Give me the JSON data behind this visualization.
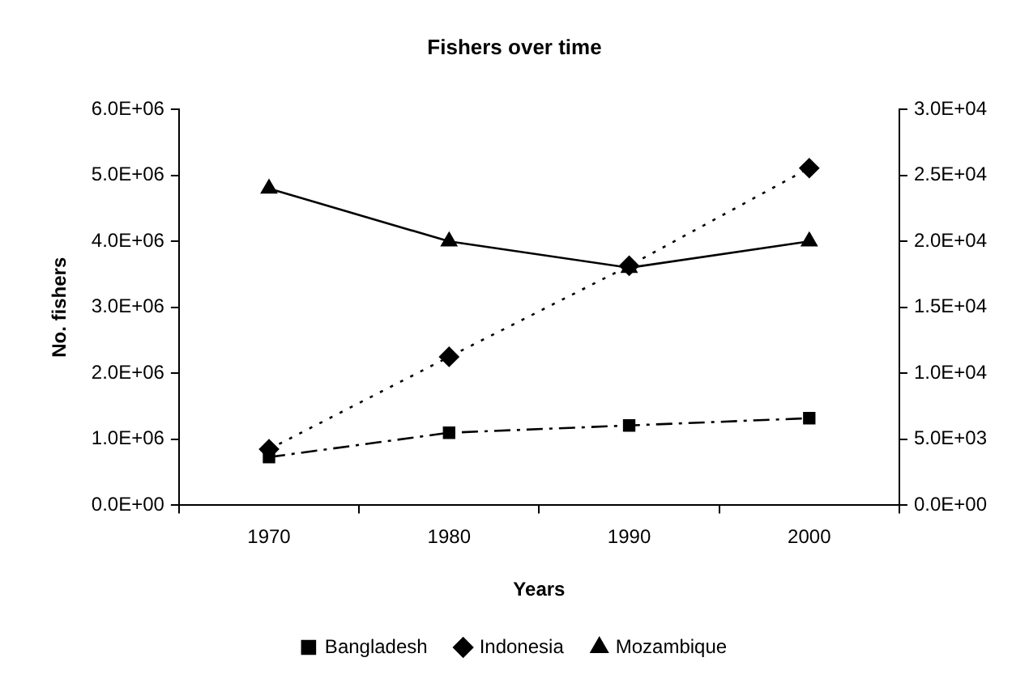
{
  "chart_data": {
    "type": "line",
    "title": "Fishers over time",
    "xlabel": "Years",
    "ylabel": "No. fishers",
    "categories": [
      "1970",
      "1980",
      "1990",
      "2000"
    ],
    "series": [
      {
        "name": "Bangladesh",
        "color": "#000000",
        "marker": "square",
        "line_style": "dashed",
        "values": [
          730000,
          1100000,
          1210000,
          1320000
        ]
      },
      {
        "name": "Indonesia",
        "color": "#000000",
        "marker": "diamond",
        "line_style": "dotted",
        "values": [
          850000,
          2250000,
          3630000,
          5110000
        ]
      },
      {
        "name": "Mozambique",
        "color": "#000000",
        "marker": "triangle",
        "line_style": "solid",
        "axis": "y2",
        "values": [
          24000,
          20000,
          18000,
          20000
        ]
      }
    ],
    "ylim": [
      0,
      6000000
    ],
    "yticks": [
      {
        "value": 0,
        "label": "0.0E+00"
      },
      {
        "value": 1000000,
        "label": "1.0E+06"
      },
      {
        "value": 2000000,
        "label": "2.0E+06"
      },
      {
        "value": 3000000,
        "label": "3.0E+06"
      },
      {
        "value": 4000000,
        "label": "4.0E+06"
      },
      {
        "value": 5000000,
        "label": "5.0E+06"
      },
      {
        "value": 6000000,
        "label": "6.0E+06"
      }
    ],
    "y2lim": [
      0,
      30000
    ],
    "y2ticks": [
      {
        "value": 0,
        "label": "0.0E+00"
      },
      {
        "value": 5000,
        "label": "5.0E+03"
      },
      {
        "value": 10000,
        "label": "1.0E+04"
      },
      {
        "value": 15000,
        "label": "1.5E+04"
      },
      {
        "value": 20000,
        "label": "2.0E+04"
      },
      {
        "value": 25000,
        "label": "2.5E+04"
      },
      {
        "value": 30000,
        "label": "3.0E+04"
      }
    ],
    "grid": false,
    "legend": "bottom"
  }
}
